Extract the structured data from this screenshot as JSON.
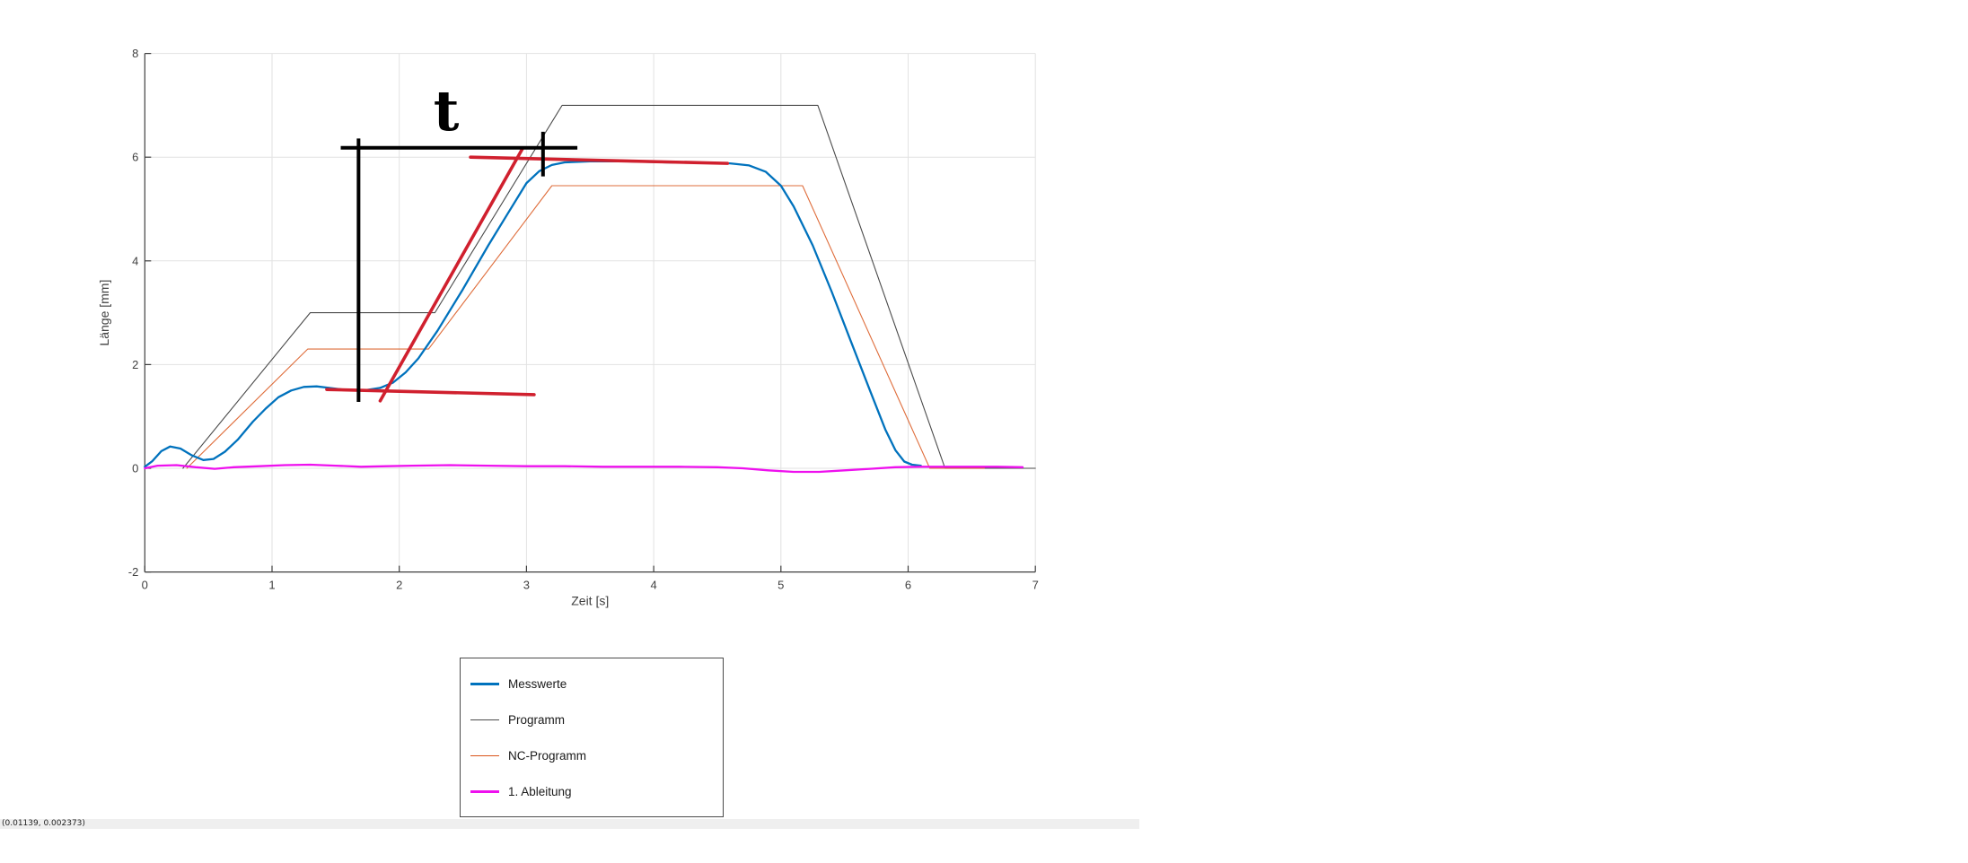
{
  "status_bar": {
    "coords_text": "(0.01139, 0.002373)"
  },
  "legend": {
    "items": [
      {
        "label": "Messwerte",
        "color": "#0072BD",
        "thickness": 3
      },
      {
        "label": "Programm",
        "color": "#4a4a4a",
        "thickness": 1
      },
      {
        "label": "NC-Programm",
        "color": "#D95319",
        "thickness": 1
      },
      {
        "label": "1. Ableitung",
        "color": "#EE10EE",
        "thickness": 3
      }
    ]
  },
  "chart_data": {
    "type": "line",
    "title": "",
    "xlabel": "Zeit [s]",
    "ylabel": "Länge [mm]",
    "xlim": [
      0,
      7
    ],
    "ylim": [
      -2,
      8
    ],
    "xticks": [
      0,
      1,
      2,
      3,
      4,
      5,
      6,
      7
    ],
    "yticks": [
      -2,
      0,
      2,
      4,
      6,
      8
    ],
    "grid": true,
    "grid_color": "#e2e2e2",
    "spine_color": "#3f3f3f",
    "legend_position": "below-left",
    "series": [
      {
        "name": "Programm",
        "color": "#4a4a4a",
        "width": 1.1,
        "opacity": 1,
        "points": [
          [
            0.3,
            0
          ],
          [
            1.3,
            3
          ],
          [
            2.28,
            3
          ],
          [
            3.28,
            7
          ],
          [
            5.29,
            7
          ],
          [
            6.29,
            0
          ],
          [
            7.0,
            0
          ]
        ]
      },
      {
        "name": "NC-Programm",
        "color": "#D95319",
        "width": 1.1,
        "opacity": 0.85,
        "points": [
          [
            0.33,
            0
          ],
          [
            1.28,
            2.3
          ],
          [
            2.23,
            2.3
          ],
          [
            3.2,
            5.45
          ],
          [
            5.17,
            5.45
          ],
          [
            6.17,
            0
          ],
          [
            6.6,
            0
          ]
        ]
      },
      {
        "name": "Messwerte",
        "color": "#0072BD",
        "width": 2.3,
        "opacity": 1,
        "points": [
          [
            0,
            0.03
          ],
          [
            0.06,
            0.14
          ],
          [
            0.13,
            0.33
          ],
          [
            0.2,
            0.42
          ],
          [
            0.28,
            0.38
          ],
          [
            0.37,
            0.25
          ],
          [
            0.46,
            0.16
          ],
          [
            0.54,
            0.18
          ],
          [
            0.63,
            0.32
          ],
          [
            0.73,
            0.55
          ],
          [
            0.85,
            0.9
          ],
          [
            0.95,
            1.15
          ],
          [
            1.05,
            1.37
          ],
          [
            1.15,
            1.5
          ],
          [
            1.25,
            1.57
          ],
          [
            1.35,
            1.58
          ],
          [
            1.45,
            1.55
          ],
          [
            1.58,
            1.51
          ],
          [
            1.72,
            1.5
          ],
          [
            1.85,
            1.55
          ],
          [
            1.95,
            1.65
          ],
          [
            2.05,
            1.85
          ],
          [
            2.15,
            2.12
          ],
          [
            2.3,
            2.65
          ],
          [
            2.5,
            3.45
          ],
          [
            2.7,
            4.3
          ],
          [
            2.85,
            4.9
          ],
          [
            3.0,
            5.5
          ],
          [
            3.1,
            5.73
          ],
          [
            3.2,
            5.85
          ],
          [
            3.3,
            5.9
          ],
          [
            3.5,
            5.92
          ],
          [
            3.8,
            5.92
          ],
          [
            4.1,
            5.9
          ],
          [
            4.4,
            5.89
          ],
          [
            4.6,
            5.88
          ],
          [
            4.75,
            5.84
          ],
          [
            4.88,
            5.72
          ],
          [
            5.0,
            5.45
          ],
          [
            5.1,
            5.05
          ],
          [
            5.25,
            4.3
          ],
          [
            5.4,
            3.4
          ],
          [
            5.55,
            2.45
          ],
          [
            5.7,
            1.5
          ],
          [
            5.82,
            0.75
          ],
          [
            5.9,
            0.35
          ],
          [
            5.97,
            0.13
          ],
          [
            6.03,
            0.07
          ],
          [
            6.1,
            0.05
          ]
        ]
      },
      {
        "name": "1. Ableitung",
        "color": "#EE10EE",
        "width": 2.3,
        "opacity": 1,
        "points": [
          [
            0,
            0.0
          ],
          [
            0.1,
            0.05
          ],
          [
            0.25,
            0.06
          ],
          [
            0.4,
            0.02
          ],
          [
            0.55,
            -0.01
          ],
          [
            0.7,
            0.02
          ],
          [
            0.9,
            0.04
          ],
          [
            1.1,
            0.06
          ],
          [
            1.3,
            0.07
          ],
          [
            1.5,
            0.05
          ],
          [
            1.7,
            0.03
          ],
          [
            1.9,
            0.04
          ],
          [
            2.1,
            0.05
          ],
          [
            2.4,
            0.06
          ],
          [
            2.7,
            0.05
          ],
          [
            3.0,
            0.04
          ],
          [
            3.3,
            0.04
          ],
          [
            3.6,
            0.03
          ],
          [
            3.9,
            0.03
          ],
          [
            4.2,
            0.03
          ],
          [
            4.5,
            0.02
          ],
          [
            4.7,
            0.0
          ],
          [
            4.9,
            -0.04
          ],
          [
            5.1,
            -0.07
          ],
          [
            5.3,
            -0.07
          ],
          [
            5.5,
            -0.04
          ],
          [
            5.7,
            -0.01
          ],
          [
            5.9,
            0.02
          ],
          [
            6.1,
            0.03
          ],
          [
            6.4,
            0.03
          ],
          [
            6.7,
            0.03
          ],
          [
            6.9,
            0.02
          ]
        ]
      }
    ],
    "annotations": {
      "red_color": "#D0202E",
      "red_lines": [
        {
          "x1": 1.43,
          "y1": 1.52,
          "x2": 3.06,
          "y2": 1.42
        },
        {
          "x1": 1.85,
          "y1": 1.3,
          "x2": 2.97,
          "y2": 6.17
        },
        {
          "x1": 2.56,
          "y1": 6.0,
          "x2": 4.58,
          "y2": 5.88
        }
      ],
      "black_color": "#000000",
      "black_lines": [
        {
          "x1": 1.68,
          "y1": 1.28,
          "x2": 1.68,
          "y2": 6.36
        },
        {
          "x1": 1.54,
          "y1": 6.18,
          "x2": 3.4,
          "y2": 6.18
        },
        {
          "x1": 3.13,
          "y1": 5.63,
          "x2": 3.13,
          "y2": 6.49
        }
      ],
      "label": {
        "text": "t",
        "x": 2.37,
        "y": 6.52
      }
    }
  }
}
